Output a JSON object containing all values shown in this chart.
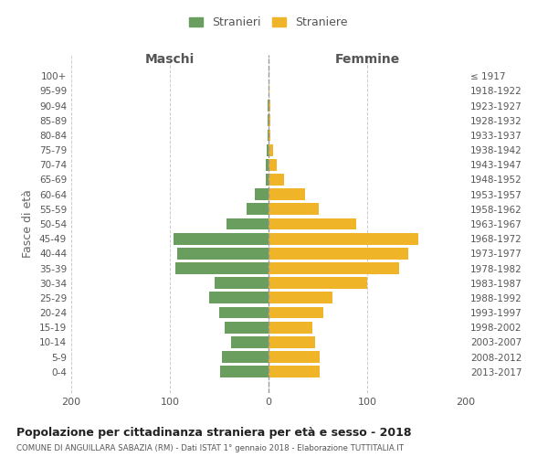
{
  "age_groups": [
    "0-4",
    "5-9",
    "10-14",
    "15-19",
    "20-24",
    "25-29",
    "30-34",
    "35-39",
    "40-44",
    "45-49",
    "50-54",
    "55-59",
    "60-64",
    "65-69",
    "70-74",
    "75-79",
    "80-84",
    "85-89",
    "90-94",
    "95-99",
    "100+"
  ],
  "birth_years": [
    "2013-2017",
    "2008-2012",
    "2003-2007",
    "1998-2002",
    "1993-1997",
    "1988-1992",
    "1983-1987",
    "1978-1982",
    "1973-1977",
    "1968-1972",
    "1963-1967",
    "1958-1962",
    "1953-1957",
    "1948-1952",
    "1943-1947",
    "1938-1942",
    "1933-1937",
    "1928-1932",
    "1923-1927",
    "1918-1922",
    "≤ 1917"
  ],
  "males": [
    49,
    47,
    38,
    44,
    50,
    60,
    55,
    94,
    93,
    96,
    43,
    22,
    14,
    3,
    3,
    2,
    1,
    1,
    1,
    0,
    0
  ],
  "females": [
    52,
    52,
    47,
    44,
    56,
    65,
    100,
    132,
    142,
    152,
    89,
    51,
    37,
    16,
    8,
    5,
    2,
    2,
    2,
    1,
    0
  ],
  "male_color": "#6a9e5e",
  "female_color": "#f0b429",
  "background_color": "#ffffff",
  "grid_color": "#cccccc",
  "title": "Popolazione per cittadinanza straniera per età e sesso - 2018",
  "subtitle": "COMUNE DI ANGUILLARA SABAZIA (RM) - Dati ISTAT 1° gennaio 2018 - Elaborazione TUTTITALIA.IT",
  "xlabel_left": "Maschi",
  "xlabel_right": "Femmine",
  "ylabel_left": "Fasce di età",
  "legend_males": "Stranieri",
  "legend_females": "Straniere",
  "xlim": 200,
  "bar_height": 0.8
}
